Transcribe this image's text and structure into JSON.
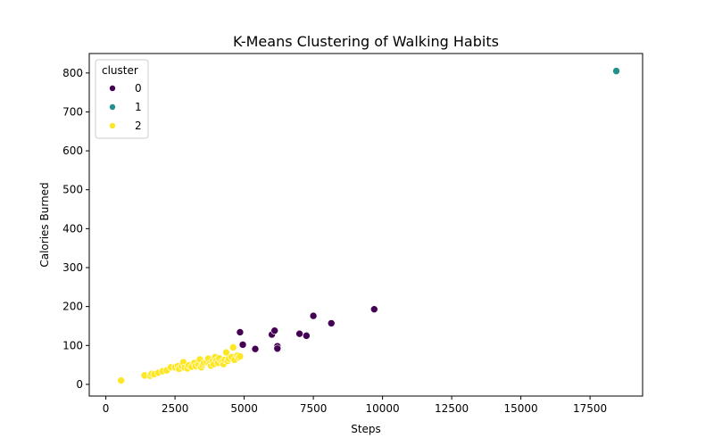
{
  "chart_data": {
    "type": "scatter",
    "title": "K-Means Clustering of Walking Habits",
    "xlabel": "Steps",
    "ylabel": "Calories Burned",
    "xlim": [
      -600,
      19400
    ],
    "ylim": [
      -30,
      850
    ],
    "xticks": [
      0,
      2500,
      5000,
      7500,
      10000,
      12500,
      15000,
      17500
    ],
    "yticks": [
      0,
      100,
      200,
      300,
      400,
      500,
      600,
      700,
      800
    ],
    "grid": false,
    "legend": {
      "title": "cluster",
      "position": "top-left"
    },
    "series": [
      {
        "name": "0",
        "color": "#440154",
        "points": [
          [
            4850,
            134
          ],
          [
            4950,
            102
          ],
          [
            5400,
            91
          ],
          [
            6000,
            128
          ],
          [
            6100,
            138
          ],
          [
            6200,
            98
          ],
          [
            6200,
            92
          ],
          [
            7000,
            130
          ],
          [
            7250,
            125
          ],
          [
            7500,
            176
          ],
          [
            8150,
            157
          ],
          [
            9700,
            193
          ]
        ]
      },
      {
        "name": "1",
        "color": "#21918c",
        "points": [
          [
            18450,
            805
          ]
        ]
      },
      {
        "name": "2",
        "color": "#fde725",
        "points": [
          [
            550,
            10
          ],
          [
            1400,
            23
          ],
          [
            1600,
            22
          ],
          [
            1650,
            27
          ],
          [
            1750,
            26
          ],
          [
            1900,
            30
          ],
          [
            2050,
            34
          ],
          [
            2200,
            36
          ],
          [
            2350,
            44
          ],
          [
            2500,
            44
          ],
          [
            2600,
            47
          ],
          [
            2650,
            40
          ],
          [
            2750,
            46
          ],
          [
            2800,
            57
          ],
          [
            2850,
            43
          ],
          [
            2950,
            41
          ],
          [
            3000,
            49
          ],
          [
            3100,
            45
          ],
          [
            3200,
            55
          ],
          [
            3250,
            47
          ],
          [
            3350,
            51
          ],
          [
            3400,
            64
          ],
          [
            3450,
            44
          ],
          [
            3500,
            50
          ],
          [
            3550,
            55
          ],
          [
            3650,
            57
          ],
          [
            3700,
            66
          ],
          [
            3750,
            53
          ],
          [
            3800,
            48
          ],
          [
            3850,
            59
          ],
          [
            3900,
            52
          ],
          [
            3950,
            70
          ],
          [
            4000,
            62
          ],
          [
            4050,
            55
          ],
          [
            4100,
            67
          ],
          [
            4200,
            58
          ],
          [
            4250,
            52
          ],
          [
            4300,
            63
          ],
          [
            4350,
            82
          ],
          [
            4400,
            60
          ],
          [
            4450,
            66
          ],
          [
            4550,
            70
          ],
          [
            4600,
            95
          ],
          [
            4650,
            63
          ],
          [
            4750,
            74
          ],
          [
            4800,
            69
          ],
          [
            4850,
            72
          ]
        ]
      }
    ]
  }
}
